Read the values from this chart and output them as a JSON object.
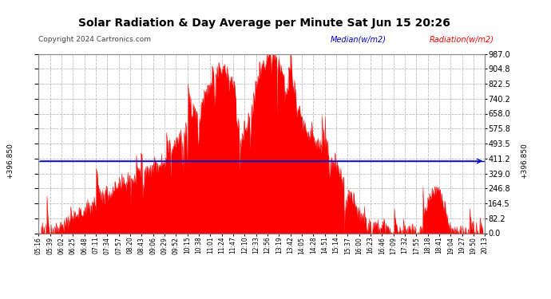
{
  "title": "Solar Radiation & Day Average per Minute Sat Jun 15 20:26",
  "copyright": "Copyright 2024 Cartronics.com",
  "legend_median": "Median(w/m2)",
  "legend_radiation": "Radiation(w/m2)",
  "median_value": 396.85,
  "y_ticks": [
    0.0,
    82.2,
    164.5,
    246.8,
    329.0,
    411.2,
    493.5,
    575.8,
    658.0,
    740.2,
    822.5,
    904.8,
    987.0
  ],
  "y_max": 987.0,
  "y_min": 0.0,
  "background_color": "#ffffff",
  "radiation_color": "#ff0000",
  "median_color": "#0000cc",
  "grid_color": "#bbbbbb",
  "title_color": "#000000",
  "x_labels": [
    "05:16",
    "05:39",
    "06:02",
    "06:25",
    "06:48",
    "07:11",
    "07:34",
    "07:57",
    "08:20",
    "08:43",
    "09:06",
    "09:29",
    "09:52",
    "10:15",
    "10:38",
    "11:01",
    "11:24",
    "11:47",
    "12:10",
    "12:33",
    "12:56",
    "13:19",
    "13:42",
    "14:05",
    "14:28",
    "14:51",
    "15:14",
    "15:37",
    "16:00",
    "16:23",
    "16:46",
    "17:09",
    "17:32",
    "17:55",
    "18:18",
    "18:41",
    "19:04",
    "19:27",
    "19:50",
    "20:13"
  ],
  "seed1": 42,
  "seed2": 77
}
